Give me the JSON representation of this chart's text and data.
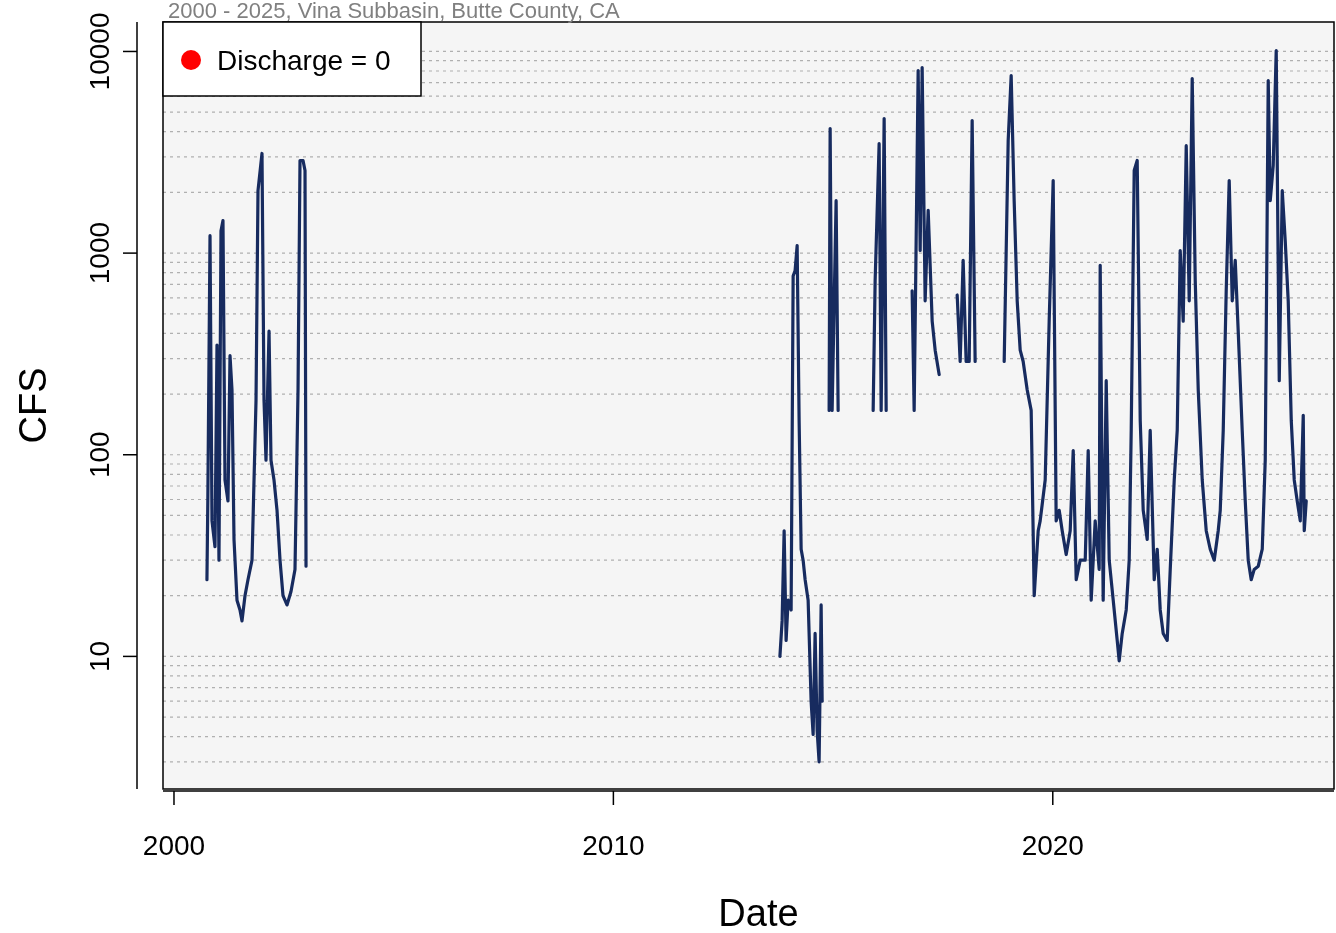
{
  "chart_data": {
    "type": "line",
    "subtitle": "2000 - 2025, Vina Subbasin, Butte County, CA",
    "xlabel": "Date",
    "ylabel": "CFS",
    "log": "y",
    "grid": "y",
    "legend": "top left",
    "xlim": [
      1999.75,
      2026.4
    ],
    "xticks": [
      2000,
      2010,
      2020
    ],
    "ylim": [
      2.2,
      14000
    ],
    "yticks": [
      {
        "value": 3,
        "label": null
      },
      {
        "value": 4,
        "label": null
      },
      {
        "value": 5,
        "label": null
      },
      {
        "value": 6,
        "label": null
      },
      {
        "value": 7,
        "label": null
      },
      {
        "value": 8,
        "label": null
      },
      {
        "value": 9,
        "label": null
      },
      10,
      {
        "value": 20,
        "label": null
      },
      {
        "value": 30,
        "label": null
      },
      {
        "value": 40,
        "label": null
      },
      {
        "value": 50,
        "label": null
      },
      {
        "value": 60,
        "label": null
      },
      {
        "value": 70,
        "label": null
      },
      {
        "value": 80,
        "label": null
      },
      {
        "value": 90,
        "label": null
      },
      100,
      {
        "value": 200,
        "label": null
      },
      {
        "value": 300,
        "label": null
      },
      {
        "value": 400,
        "label": null
      },
      {
        "value": 500,
        "label": null
      },
      {
        "value": 600,
        "label": null
      },
      {
        "value": 700,
        "label": null
      },
      {
        "value": 800,
        "label": null
      },
      {
        "value": 900,
        "label": null
      },
      1000,
      {
        "value": 2000,
        "label": null
      },
      {
        "value": 3000,
        "label": null
      },
      {
        "value": 4000,
        "label": null
      },
      {
        "value": 5000,
        "label": null
      },
      {
        "value": 6000,
        "label": null
      },
      {
        "value": 7000,
        "label": null
      },
      {
        "value": 8000,
        "label": null
      },
      {
        "value": 9000,
        "label": null
      },
      10000
    ],
    "series": [
      {
        "color": "#172b5f",
        "line_style": "solid",
        "x": [
          2000.75,
          2000.77,
          2000.82,
          2000.865,
          2000.933,
          2000.979,
          2001.024,
          2001.07,
          2001.115,
          2001.161,
          2001.229,
          2001.275,
          2001.32,
          2001.366,
          2001.434,
          2001.502,
          2001.548,
          2001.616,
          2001.684,
          2001.776,
          2001.867,
          2001.912,
          2002.003,
          2002.049,
          2002.094,
          2002.163,
          2002.208,
          2002.276,
          2002.345,
          2002.413,
          2002.481,
          2002.572,
          2002.663,
          2002.754,
          2002.823,
          2002.868,
          2002.937,
          2002.982,
          2003.005,
          2008,
          2013.79,
          2013.84,
          2013.886,
          2013.931,
          2013.977,
          2014.045,
          2014.091,
          2014.136,
          2014.182,
          2014.227,
          2014.273,
          2014.318,
          2014.364,
          2014.432,
          2014.5,
          2014.546,
          2014.591,
          2014.637,
          2014.682,
          2014.728,
          2014.751,
          2014.83,
          2014.91,
          2014.933,
          2014.978,
          2015.069,
          2015.115,
          2015.5,
          2015.912,
          2015.957,
          2016.048,
          2016.094,
          2016.162,
          2016.208,
          2016.5,
          2016.799,
          2016.845,
          2016.936,
          2016.982,
          2017.027,
          2017.095,
          2017.164,
          2017.255,
          2017.323,
          2017.414,
          2017.6,
          2017.824,
          2017.892,
          2017.96,
          2018.028,
          2018.097,
          2018.165,
          2018.233,
          2018.5,
          2018.894,
          2018.985,
          2019.053,
          2019.121,
          2019.19,
          2019.258,
          2019.326,
          2019.417,
          2019.508,
          2019.577,
          2019.668,
          2019.713,
          2019.827,
          2019.918,
          2020.009,
          2020.077,
          2020.146,
          2020.214,
          2020.305,
          2020.396,
          2020.465,
          2020.533,
          2020.624,
          2020.738,
          2020.806,
          2020.874,
          2020.965,
          2021.056,
          2021.079,
          2021.147,
          2021.216,
          2021.284,
          2021.375,
          2021.466,
          2021.511,
          2021.58,
          2021.671,
          2021.739,
          2021.785,
          2021.853,
          2021.921,
          2021.99,
          2022.058,
          2022.149,
          2022.217,
          2022.308,
          2022.377,
          2022.445,
          2022.513,
          2022.604,
          2022.673,
          2022.764,
          2022.832,
          2022.9,
          2022.968,
          2023.037,
          2023.105,
          2023.173,
          2023.242,
          2023.31,
          2023.401,
          2023.492,
          2023.583,
          2023.674,
          2023.765,
          2023.811,
          2023.879,
          2023.947,
          2024.015,
          2024.084,
          2024.152,
          2024.22,
          2024.311,
          2024.38,
          2024.448,
          2024.516,
          2024.584,
          2024.676,
          2024.767,
          2024.835,
          2024.903,
          2024.949,
          2025.017,
          2025.085,
          2025.154,
          2025.222,
          2025.29,
          2025.358,
          2025.427,
          2025.495,
          2025.563,
          2025.632,
          2025.7,
          2025.723,
          2025.768
        ],
        "values": [
          24,
          59,
          1220,
          47,
          35,
          350,
          30,
          1290,
          1450,
          75,
          59,
          310,
          210,
          38,
          19,
          17,
          15,
          20,
          24,
          30,
          186,
          2040,
          3120,
          186,
          94,
          410,
          94,
          75,
          53,
          30,
          20,
          18,
          21,
          27,
          210,
          2880,
          2880,
          2570,
          28,
          null,
          10,
          15,
          42,
          12,
          19,
          17,
          770,
          820,
          1090,
          148,
          34,
          30,
          24,
          19,
          6.0,
          4.1,
          13,
          4.3,
          3.0,
          18,
          6.0,
          null,
          166,
          4150,
          166,
          1820,
          166,
          null,
          166,
          730,
          3490,
          166,
          4650,
          166,
          null,
          650,
          166,
          8040,
          1030,
          8320,
          580,
          1630,
          460,
          330,
          250,
          null,
          620,
          290,
          920,
          290,
          290,
          4540,
          290,
          null,
          290,
          3610,
          7600,
          1820,
          580,
          330,
          290,
          210,
          166,
          20,
          42,
          47,
          75,
          460,
          2290,
          47,
          53,
          42,
          32,
          42,
          105,
          24,
          30,
          30,
          105,
          19,
          47,
          27,
          870,
          19,
          233,
          30,
          19,
          12,
          9.5,
          13,
          17,
          30,
          132,
          2570,
          2880,
          148,
          53,
          38,
          132,
          24,
          34,
          17,
          13,
          12,
          27,
          75,
          132,
          1030,
          460,
          3410,
          580,
          7340,
          730,
          210,
          75,
          42,
          34,
          30,
          42,
          53,
          132,
          650,
          2290,
          580,
          920,
          410,
          132,
          59,
          30,
          24,
          27,
          28,
          34,
          94,
          7170,
          1820,
          2720,
          10100,
          233,
          2040,
          1150,
          580,
          148,
          75,
          59,
          47,
          157,
          42,
          59
        ]
      },
      {
        "type": "scatter",
        "name": "Discharge = 0",
        "color": "#ff0000",
        "marker": "circle"
      }
    ]
  }
}
